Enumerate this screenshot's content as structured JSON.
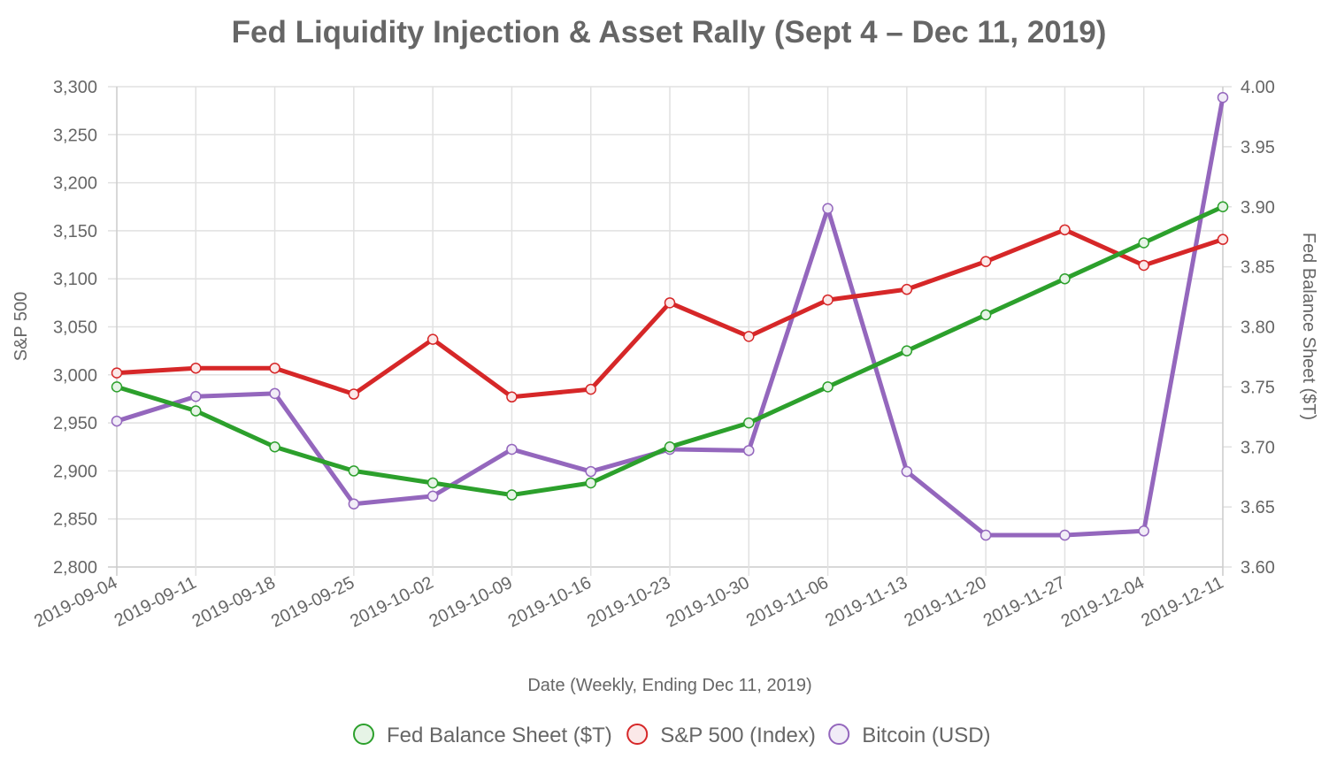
{
  "chart_data": {
    "type": "line",
    "title": "Fed Liquidity Injection & Asset Rally (Sept 4 – Dec 11, 2019)",
    "xlabel": "Date (Weekly, Ending Dec 11, 2019)",
    "ylabel_left": "S&P 500",
    "ylabel_right": "Fed Balance Sheet ($T)",
    "x": [
      "2019-09-04",
      "2019-09-11",
      "2019-09-18",
      "2019-09-25",
      "2019-10-02",
      "2019-10-09",
      "2019-10-16",
      "2019-10-23",
      "2019-10-30",
      "2019-11-06",
      "2019-11-13",
      "2019-11-20",
      "2019-11-27",
      "2019-12-04",
      "2019-12-11"
    ],
    "y_left": {
      "range": [
        2800,
        3300
      ],
      "ticks": [
        2800,
        2850,
        2900,
        2950,
        3000,
        3050,
        3100,
        3150,
        3200,
        3250,
        3300
      ],
      "tick_labels": [
        "2,800",
        "2,850",
        "2,900",
        "2,950",
        "3,000",
        "3,050",
        "3,100",
        "3,150",
        "3,200",
        "3,250",
        "3,300"
      ]
    },
    "y_right": {
      "range": [
        3.6,
        4.0
      ],
      "ticks": [
        3.6,
        3.65,
        3.7,
        3.75,
        3.8,
        3.85,
        3.9,
        3.95,
        4.0
      ],
      "tick_labels": [
        "3.60",
        "3.65",
        "3.70",
        "3.75",
        "3.80",
        "3.85",
        "3.90",
        "3.95",
        "4.00"
      ]
    },
    "y_hidden_bitcoin": {
      "range": [
        7000,
        11000
      ]
    },
    "grid": true,
    "legend_position": "bottom",
    "series": [
      {
        "name": "Fed Balance Sheet ($T)",
        "axis": "right",
        "color": "#2ca02c",
        "fill": "#e6f4e6",
        "values": [
          3.75,
          3.73,
          3.7,
          3.68,
          3.67,
          3.66,
          3.67,
          3.7,
          3.72,
          3.75,
          3.78,
          3.81,
          3.84,
          3.87,
          3.9
        ]
      },
      {
        "name": "S&P 500 (Index)",
        "axis": "left",
        "color": "#d62728",
        "fill": "#fbe8e8",
        "values": [
          3002,
          3007,
          3007,
          2980,
          3037,
          2977,
          2985,
          3075,
          3040,
          3078,
          3089,
          3118,
          3151,
          3114,
          3141
        ]
      },
      {
        "name": "Bitcoin (USD)",
        "axis": "hidden",
        "color": "#9467bd",
        "fill": "#f1ecf7",
        "values": [
          8215,
          8420,
          8445,
          7525,
          7590,
          7980,
          7795,
          7980,
          7970,
          9985,
          7795,
          7265,
          7265,
          7300,
          10910
        ]
      }
    ]
  }
}
